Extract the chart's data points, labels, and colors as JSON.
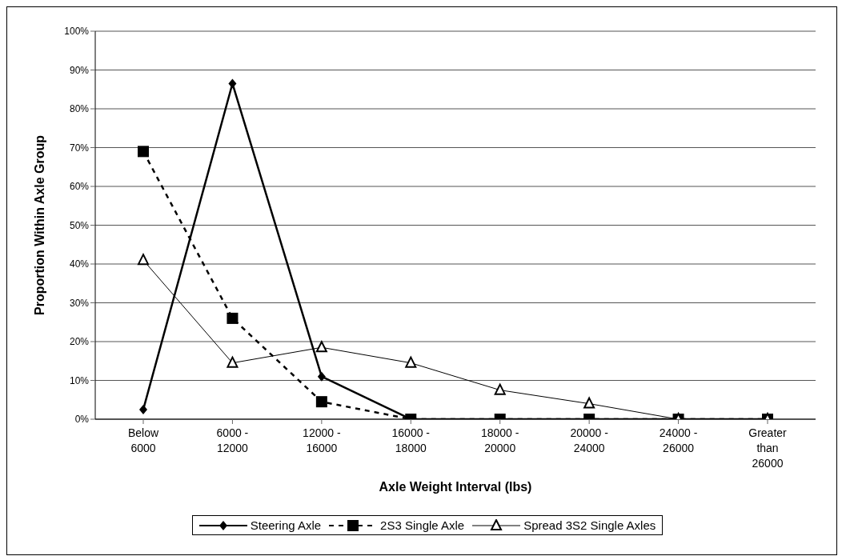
{
  "chart_data": {
    "type": "line",
    "xlabel": "Axle Weight Interval (lbs)",
    "ylabel": "Proportion Within Axle Group",
    "categories": [
      "Below 6000",
      "6000 - 12000",
      "12000 - 16000",
      "16000 - 18000",
      "18000 - 20000",
      "20000 - 24000",
      "24000 - 26000",
      "Greater than 26000"
    ],
    "series": [
      {
        "name": "Steering Axle",
        "color": "#000000",
        "marker": "diamond",
        "line_style": "solid",
        "values": [
          2.5,
          86.5,
          11,
          0,
          0,
          0,
          0,
          0
        ]
      },
      {
        "name": "2S3 Single  Axle",
        "color": "#000000",
        "marker": "square",
        "line_style": "dashed",
        "values": [
          69,
          26,
          4.5,
          0,
          0,
          0,
          0,
          0
        ]
      },
      {
        "name": "Spread 3S2 Single Axles",
        "color": "#000000",
        "marker": "triangle",
        "line_style": "solid",
        "values": [
          41,
          14.5,
          18.5,
          14.5,
          7.5,
          4,
          0,
          0
        ]
      }
    ],
    "ylim": [
      0,
      100
    ],
    "yticks": [
      {
        "value": 0,
        "label": "0%"
      },
      {
        "value": 10,
        "label": "10%"
      },
      {
        "value": 20,
        "label": "20%"
      },
      {
        "value": 30,
        "label": "30%"
      },
      {
        "value": 40,
        "label": "40%"
      },
      {
        "value": 50,
        "label": "50%"
      },
      {
        "value": 60,
        "label": "60%"
      },
      {
        "value": 70,
        "label": "70%"
      },
      {
        "value": 80,
        "label": "80%"
      },
      {
        "value": 90,
        "label": "90%"
      },
      {
        "value": 100,
        "label": "100%"
      }
    ],
    "grid": "y",
    "legend": "bottom"
  }
}
